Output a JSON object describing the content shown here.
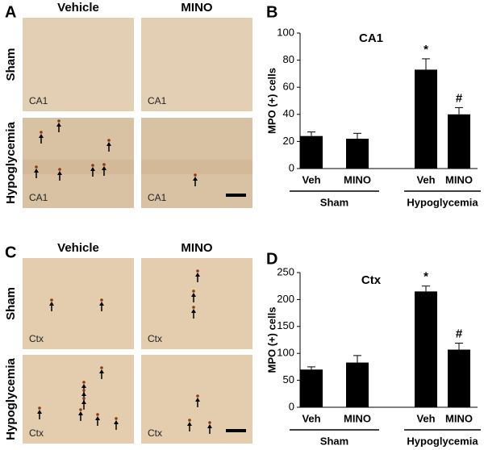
{
  "panel_labels": [
    "A",
    "B",
    "C",
    "D"
  ],
  "micrographs": [
    {
      "columns": [
        "Vehicle",
        "MINO"
      ],
      "rows": [
        "Sham",
        "Hypoglycemia"
      ],
      "image_labels": [
        "CA1",
        "CA1",
        "CA1",
        "CA1"
      ]
    },
    {
      "columns": [
        "Vehicle",
        "MINO"
      ],
      "rows": [
        "Sham",
        "Hypoglycemia"
      ],
      "image_labels": [
        "Ctx",
        "Ctx",
        "Ctx",
        "Ctx"
      ]
    }
  ],
  "chart_data": [
    {
      "type": "bar",
      "title": "CA1",
      "y_label": "MPO (+) cells",
      "categories": [
        "Veh",
        "MINO",
        "Veh",
        "MINO"
      ],
      "groups": [
        "Sham",
        "Hypoglycemia"
      ],
      "values": [
        24,
        22,
        73,
        40
      ],
      "errors": [
        3,
        4,
        8,
        5
      ],
      "annotations": [
        null,
        null,
        "*",
        "#"
      ],
      "color": "#000000",
      "ylim": [
        0,
        100
      ],
      "yticks": [
        0,
        20,
        40,
        60,
        80,
        100
      ]
    },
    {
      "type": "bar",
      "title": "Ctx",
      "y_label": "MPO (+) cells",
      "categories": [
        "Veh",
        "MINO",
        "Veh",
        "MINO"
      ],
      "groups": [
        "Sham",
        "Hypoglycemia"
      ],
      "values": [
        70,
        83,
        215,
        107
      ],
      "errors": [
        5,
        13,
        10,
        12
      ],
      "annotations": [
        null,
        null,
        "*",
        "#"
      ],
      "color": "#000000",
      "ylim": [
        0,
        250
      ],
      "yticks": [
        0,
        50,
        100,
        150,
        200,
        250
      ]
    }
  ]
}
